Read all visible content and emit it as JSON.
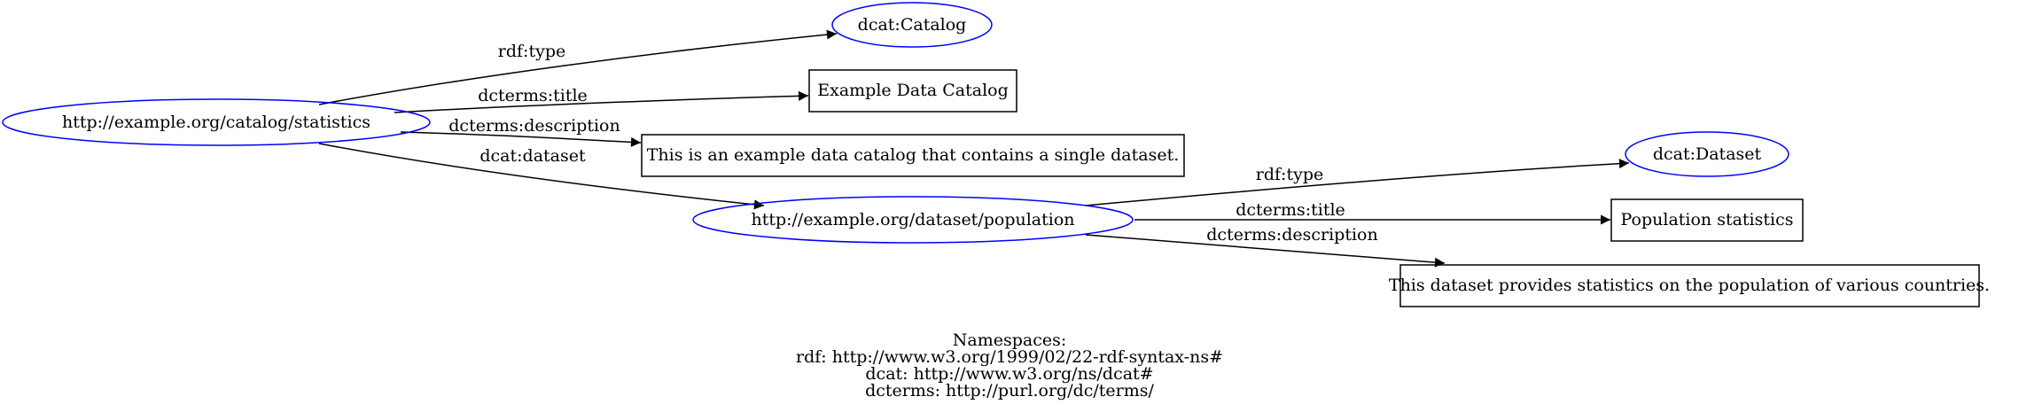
{
  "colors": {
    "uri_stroke": "#0000ff",
    "literal_stroke": "#000000",
    "edge": "#000000",
    "background": "#ffffff"
  },
  "nodes": {
    "catalog": "http://example.org/catalog/statistics",
    "catalog_type": "dcat:Catalog",
    "catalog_title": "Example Data Catalog",
    "catalog_description": "This is an example data catalog that contains a single dataset.",
    "dataset": "http://example.org/dataset/population",
    "dataset_type": "dcat:Dataset",
    "dataset_title": "Population statistics",
    "dataset_description": "This dataset provides statistics on the population of various countries."
  },
  "edges": {
    "catalog_type": "rdf:type",
    "catalog_title": "dcterms:title",
    "catalog_description": "dcterms:description",
    "catalog_dataset": "dcat:dataset",
    "dataset_type": "rdf:type",
    "dataset_title": "dcterms:title",
    "dataset_description": "dcterms:description"
  },
  "namespaces": {
    "heading": "Namespaces:",
    "rdf": "rdf: http://www.w3.org/1999/02/22-rdf-syntax-ns#",
    "dcat": "dcat: http://www.w3.org/ns/dcat#",
    "dcterms": "dcterms: http://purl.org/dc/terms/"
  }
}
